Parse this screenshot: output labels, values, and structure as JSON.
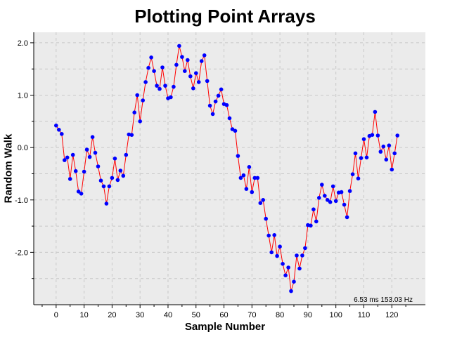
{
  "chart_data": {
    "type": "line",
    "title": "Plotting Point Arrays",
    "xlabel": "Sample Number",
    "ylabel": "Random Walk",
    "xlim": [
      -8,
      132
    ],
    "ylim": [
      -3.0,
      2.2
    ],
    "x_ticks": [
      0,
      10,
      20,
      30,
      40,
      50,
      60,
      70,
      80,
      90,
      100,
      110,
      120
    ],
    "y_ticks": [
      2.0,
      1.0,
      0.0,
      -1.0,
      -2.0
    ],
    "y_tick_labels": [
      "2.0",
      "1.0",
      "0.0",
      "-1.0",
      "-2.0"
    ],
    "grid": true,
    "annotation": "6.53 ms 153.03 Hz",
    "colors": {
      "line": "#ff0000",
      "marker": "#0000ff",
      "plot_bg": "#ebebeb",
      "grid": "#c8c8c8"
    },
    "series": [
      {
        "x_start": 0,
        "values": [
          0.42,
          0.34,
          0.26,
          -0.24,
          -0.19,
          -0.6,
          -0.14,
          -0.45,
          -0.84,
          -0.88,
          -0.46,
          -0.04,
          -0.18,
          0.2,
          -0.1,
          -0.36,
          -0.63,
          -0.74,
          -1.07,
          -0.74,
          -0.58,
          -0.21,
          -0.62,
          -0.44,
          -0.54,
          -0.14,
          0.25,
          0.24,
          0.67,
          1.0,
          0.5,
          0.9,
          1.25,
          1.52,
          1.72,
          1.46,
          1.18,
          1.12,
          1.53,
          1.18,
          0.94,
          0.96,
          1.16,
          1.58,
          1.94,
          1.73,
          1.46,
          1.67,
          1.36,
          1.13,
          1.42,
          1.25,
          1.65,
          1.76,
          1.27,
          0.8,
          0.64,
          0.88,
          0.99,
          1.11,
          0.83,
          0.81,
          0.56,
          0.35,
          0.32,
          -0.16,
          -0.58,
          -0.53,
          -0.79,
          -0.37,
          -0.85,
          -0.58,
          -0.58,
          -1.06,
          -1.0,
          -1.36,
          -1.68,
          -2.0,
          -1.67,
          -2.07,
          -1.89,
          -2.22,
          -2.44,
          -2.29,
          -2.74,
          -2.56,
          -2.06,
          -2.31,
          -2.06,
          -1.92,
          -1.48,
          -1.49,
          -1.18,
          -1.41,
          -0.96,
          -0.71,
          -0.92,
          -1.0,
          -1.04,
          -0.74,
          -1.02,
          -0.86,
          -0.85,
          -1.09,
          -1.33,
          -0.83,
          -0.51,
          -0.11,
          -0.59,
          -0.2,
          0.16,
          -0.19,
          0.22,
          0.24,
          0.68,
          0.23,
          -0.08,
          0.02,
          -0.23,
          0.04,
          -0.42,
          -0.11,
          0.23
        ]
      }
    ]
  }
}
